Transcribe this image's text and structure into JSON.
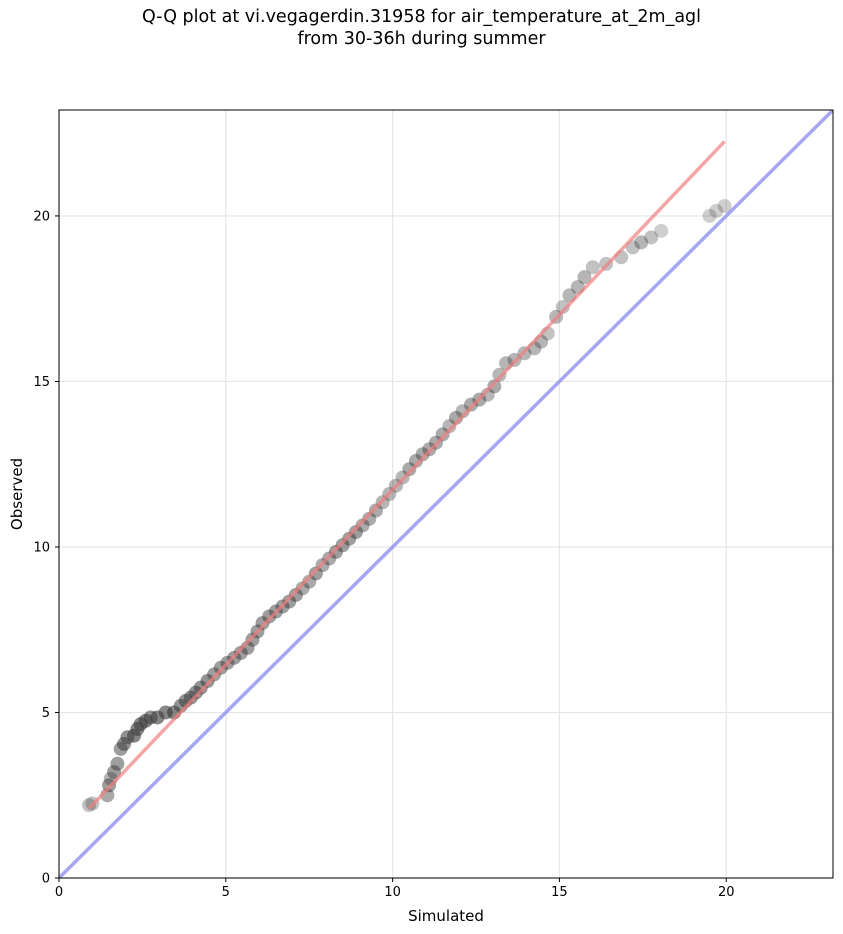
{
  "chart_data": {
    "type": "scatter",
    "title_lines": [
      "Q-Q plot at vi.vegagerdin.31958 for air_temperature_at_2m_agl",
      "from 30-36h during summer"
    ],
    "xlabel": "Simulated",
    "ylabel": "Observed",
    "xlim": [
      0,
      23.2
    ],
    "ylim": [
      0,
      23.2
    ],
    "xticks": [
      0,
      5,
      10,
      15,
      20
    ],
    "yticks": [
      0,
      5,
      10,
      15,
      20
    ],
    "xtick_labels": [
      "0",
      "5",
      "10",
      "15",
      "20"
    ],
    "ytick_labels": [
      "0",
      "5",
      "10",
      "15",
      "20"
    ],
    "grid": true,
    "colors": {
      "points": "#3a3a3a",
      "fit_line": "#f08080",
      "fit_line_core": "#8b0000",
      "identity_line": "#8888ee",
      "grid": "#e6e6e6"
    },
    "series": [
      {
        "kind": "quantile_points",
        "points": [
          [
            0.9,
            2.2
          ],
          [
            1.0,
            2.25
          ],
          [
            1.45,
            2.5
          ],
          [
            1.5,
            2.8
          ],
          [
            1.55,
            3.0
          ],
          [
            1.65,
            3.2
          ],
          [
            1.75,
            3.45
          ],
          [
            1.85,
            3.9
          ],
          [
            1.95,
            4.05
          ],
          [
            2.05,
            4.25
          ],
          [
            2.25,
            4.3
          ],
          [
            2.35,
            4.5
          ],
          [
            2.45,
            4.65
          ],
          [
            2.6,
            4.75
          ],
          [
            2.75,
            4.85
          ],
          [
            2.95,
            4.85
          ],
          [
            3.2,
            5.0
          ],
          [
            3.45,
            5.0
          ],
          [
            3.65,
            5.2
          ],
          [
            3.8,
            5.35
          ],
          [
            3.95,
            5.45
          ],
          [
            4.1,
            5.6
          ],
          [
            4.25,
            5.75
          ],
          [
            4.45,
            5.95
          ],
          [
            4.65,
            6.15
          ],
          [
            4.85,
            6.35
          ],
          [
            5.05,
            6.5
          ],
          [
            5.25,
            6.65
          ],
          [
            5.45,
            6.8
          ],
          [
            5.65,
            6.95
          ],
          [
            5.8,
            7.2
          ],
          [
            5.95,
            7.45
          ],
          [
            6.1,
            7.7
          ],
          [
            6.3,
            7.9
          ],
          [
            6.5,
            8.05
          ],
          [
            6.7,
            8.2
          ],
          [
            6.9,
            8.35
          ],
          [
            7.1,
            8.55
          ],
          [
            7.3,
            8.75
          ],
          [
            7.5,
            8.95
          ],
          [
            7.7,
            9.2
          ],
          [
            7.9,
            9.45
          ],
          [
            8.1,
            9.65
          ],
          [
            8.3,
            9.85
          ],
          [
            8.5,
            10.05
          ],
          [
            8.7,
            10.25
          ],
          [
            8.9,
            10.45
          ],
          [
            9.1,
            10.65
          ],
          [
            9.3,
            10.85
          ],
          [
            9.5,
            11.1
          ],
          [
            9.7,
            11.35
          ],
          [
            9.9,
            11.6
          ],
          [
            10.1,
            11.85
          ],
          [
            10.3,
            12.1
          ],
          [
            10.5,
            12.35
          ],
          [
            10.7,
            12.6
          ],
          [
            10.9,
            12.8
          ],
          [
            11.1,
            12.95
          ],
          [
            11.3,
            13.15
          ],
          [
            11.5,
            13.4
          ],
          [
            11.7,
            13.65
          ],
          [
            11.9,
            13.9
          ],
          [
            12.1,
            14.1
          ],
          [
            12.35,
            14.3
          ],
          [
            12.6,
            14.45
          ],
          [
            12.85,
            14.6
          ],
          [
            13.05,
            14.85
          ],
          [
            13.2,
            15.2
          ],
          [
            13.4,
            15.55
          ],
          [
            13.65,
            15.65
          ],
          [
            13.95,
            15.85
          ],
          [
            14.25,
            16.0
          ],
          [
            14.45,
            16.2
          ],
          [
            14.65,
            16.45
          ],
          [
            14.9,
            16.95
          ],
          [
            15.1,
            17.25
          ],
          [
            15.3,
            17.6
          ],
          [
            15.55,
            17.85
          ],
          [
            15.75,
            18.15
          ],
          [
            16.0,
            18.45
          ],
          [
            16.4,
            18.55
          ],
          [
            16.85,
            18.75
          ],
          [
            17.2,
            19.05
          ],
          [
            17.45,
            19.2
          ],
          [
            17.75,
            19.35
          ],
          [
            18.05,
            19.55
          ],
          [
            19.5,
            20.0
          ],
          [
            19.7,
            20.15
          ],
          [
            19.95,
            20.3
          ]
        ]
      },
      {
        "kind": "fit_line",
        "points": [
          [
            0.9,
            2.1
          ],
          [
            19.95,
            22.25
          ]
        ]
      },
      {
        "kind": "identity_line",
        "points": [
          [
            0,
            0
          ],
          [
            23.2,
            23.2
          ]
        ]
      }
    ]
  }
}
